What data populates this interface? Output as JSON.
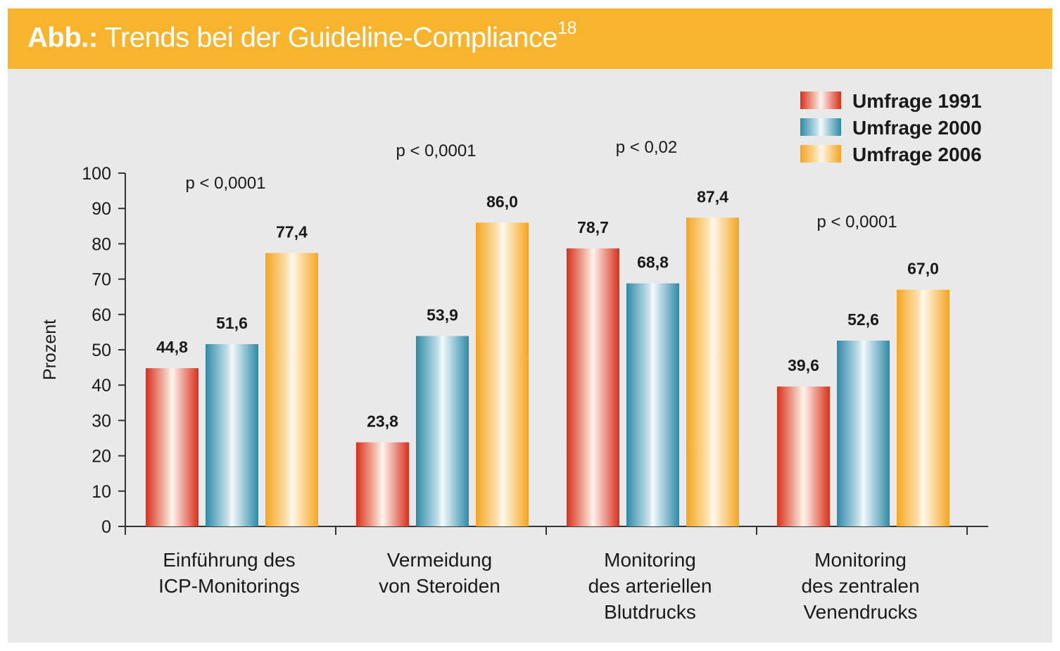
{
  "header": {
    "prefix": "Abb.:",
    "title": "Trends bei der Guideline-Compliance",
    "superscript": "18"
  },
  "colors": {
    "header_bg": "#f7b42c",
    "panel_bg": "#e9e9e9",
    "series_1991": "#d93a1e",
    "series_2000": "#3a93ae",
    "series_2006": "#f5a623"
  },
  "chart_data": {
    "type": "bar",
    "title": "Trends bei der Guideline-Compliance",
    "xlabel": "",
    "ylabel": "Prozent",
    "ylim": [
      0,
      100
    ],
    "yticks": [
      0,
      10,
      20,
      30,
      40,
      50,
      60,
      70,
      80,
      90,
      100
    ],
    "grid": false,
    "legend_position": "top-right",
    "categories": [
      [
        "Einführung des",
        "ICP-Monitorings"
      ],
      [
        "Vermeidung",
        "von Steroiden"
      ],
      [
        "Monitoring",
        "des arteriellen",
        "Blutdrucks"
      ],
      [
        "Monitoring",
        "des zentralen",
        "Venendrucks"
      ]
    ],
    "series": [
      {
        "name": "Umfrage 1991",
        "values": [
          44.8,
          23.8,
          78.7,
          39.6
        ],
        "labels": [
          "44,8",
          "23,8",
          "78,7",
          "39,6"
        ]
      },
      {
        "name": "Umfrage 2000",
        "values": [
          51.6,
          53.9,
          68.8,
          52.6
        ],
        "labels": [
          "51,6",
          "53,9",
          "68,8",
          "52,6"
        ]
      },
      {
        "name": "Umfrage 2006",
        "values": [
          77.4,
          86.0,
          87.4,
          67.0
        ],
        "labels": [
          "77,4",
          "86,0",
          "87,4",
          "67,0"
        ]
      }
    ],
    "annotations": [
      "p < 0,0001",
      "p < 0,0001",
      "p < 0,02",
      "p < 0,0001"
    ]
  }
}
